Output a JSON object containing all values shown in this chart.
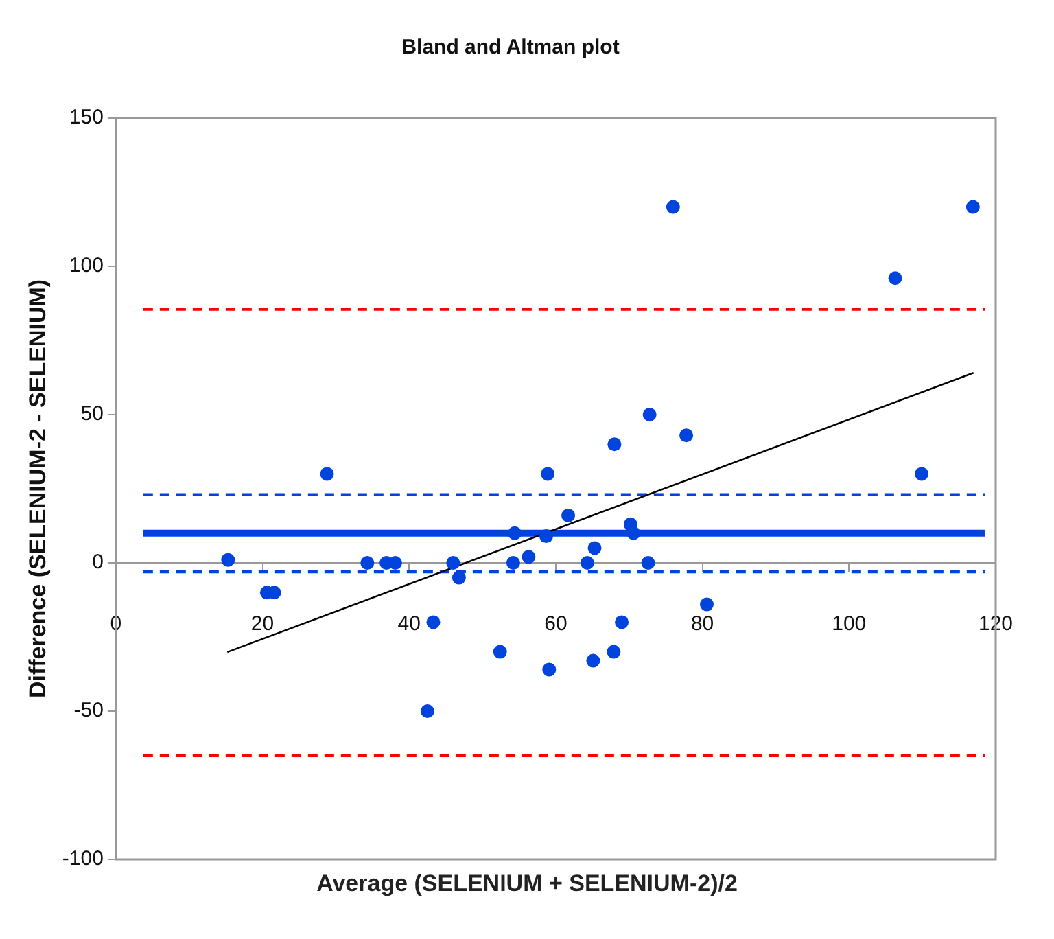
{
  "chart_data": {
    "type": "scatter",
    "title": "Bland and Altman plot",
    "xlabel": "Average (SELENIUM + SELENIUM-2)/2",
    "ylabel": "Difference (SELENIUM-2 - SELENIUM)",
    "xlim": [
      0,
      120
    ],
    "xticks": [
      0,
      20,
      40,
      60,
      80,
      100,
      120
    ],
    "ylim": [
      -100,
      150
    ],
    "yticks": [
      -100,
      -50,
      0,
      50,
      100,
      150
    ],
    "marker": "circle",
    "series": [
      {
        "color": "#0044dd",
        "x": [
          15.3,
          20.6,
          21.6,
          28.8,
          34.3,
          36.9,
          38.1,
          46,
          46.8,
          43.3,
          42.5,
          52.4,
          54.2,
          54.4,
          56.3,
          58.9,
          58.7,
          59.1,
          61.7,
          64.3,
          65.3,
          65.1,
          67.9,
          68,
          69,
          70.2,
          70.6,
          72.6,
          72.8,
          76,
          77.8,
          80.6,
          106.3,
          109.9,
          116.9
        ],
        "values": [
          1,
          -10,
          -10,
          30,
          0,
          0,
          0,
          0,
          -5,
          -20,
          -50,
          -30,
          0,
          10,
          2,
          30,
          9,
          -36,
          16,
          0,
          5,
          -33,
          -30,
          40,
          -20,
          13,
          10,
          0,
          50,
          120,
          43,
          -14,
          96,
          30,
          120
        ]
      },
      {
        "type": "line",
        "color": "#000000",
        "marker": "none",
        "line_style": "solid",
        "x": [
          15.3,
          116.9
        ],
        "values": [
          -30,
          64
        ]
      }
    ],
    "ref_lines": [
      {
        "axis": "y",
        "value": 10,
        "color": "#0044dd",
        "line_style": "solid"
      },
      {
        "axis": "y",
        "value": 23,
        "color": "#0044dd",
        "line_style": "dashed"
      },
      {
        "axis": "y",
        "value": -3,
        "color": "#0044dd",
        "line_style": "dashed"
      },
      {
        "axis": "y",
        "value": 85.5,
        "color": "#ff0000",
        "line_style": "dashed"
      },
      {
        "axis": "y",
        "value": -65,
        "color": "#ff0000",
        "line_style": "dashed"
      }
    ]
  }
}
